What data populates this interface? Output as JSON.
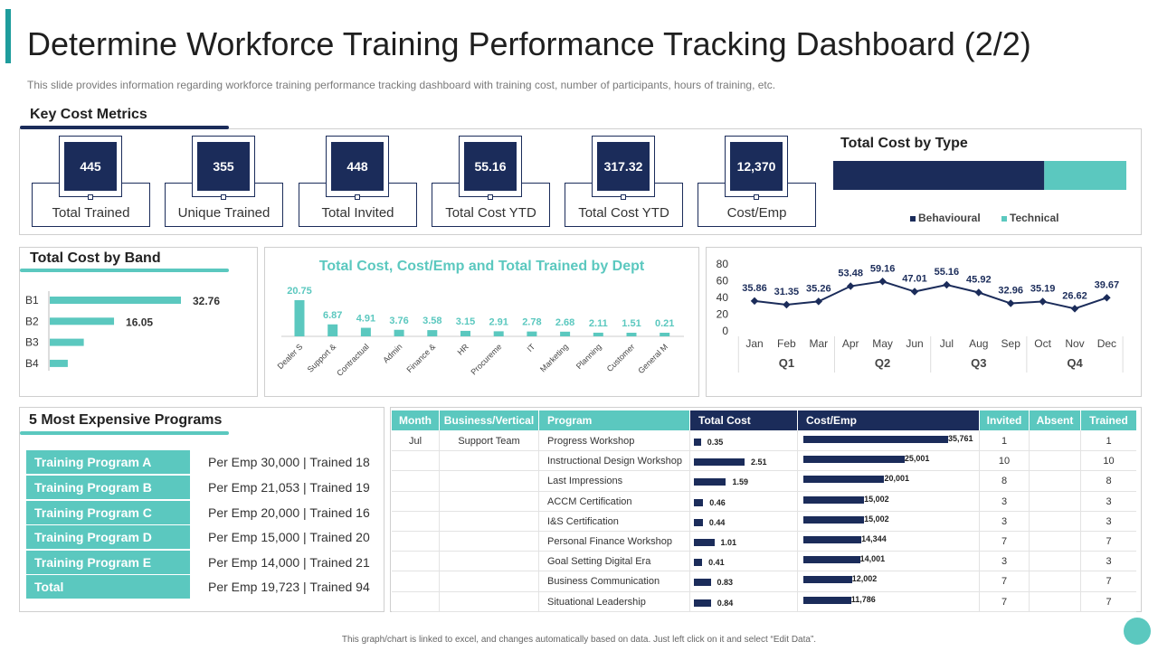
{
  "page": {
    "title": "Determine Workforce Training Performance Tracking Dashboard (2/2)",
    "subtitle": "This slide provides  information  regarding  workforce  training  performance  tracking dashboard  with training cost, number of participants, hours of training, etc.",
    "footer": "This graph/chart is linked to excel, and changes automatically based on data. Just left click on it and select “Edit Data”."
  },
  "colors": {
    "navy": "#1b2c5a",
    "teal": "#5bc8bf",
    "dark_teal": "#1e9c9c"
  },
  "key_cost_metrics": {
    "title": "Key Cost Metrics",
    "kpis": [
      {
        "value": "445",
        "label": "Total Trained"
      },
      {
        "value": "355",
        "label": "Unique Trained"
      },
      {
        "value": "448",
        "label": "Total Invited"
      },
      {
        "value": "55.16",
        "label": "Total Cost YTD"
      },
      {
        "value": "317.32",
        "label": "Total Cost YTD"
      },
      {
        "value": "12,370",
        "label": "Cost/Emp"
      }
    ]
  },
  "chart_data": [
    {
      "type": "bar",
      "orientation": "horizontal-stacked",
      "title": "Total Cost by Type",
      "categories": [
        "Total"
      ],
      "series": [
        {
          "name": "Behavioural",
          "values": [
            72
          ]
        },
        {
          "name": "Technical",
          "values": [
            28
          ]
        }
      ],
      "legend": "bottom"
    },
    {
      "type": "bar",
      "orientation": "horizontal",
      "title": "Total Cost by Band",
      "categories": [
        "B1",
        "B2",
        "B3",
        "B4"
      ],
      "values": [
        32.76,
        16.05,
        8.5,
        4.5
      ],
      "data_labels": [
        "32.76",
        "16.05",
        "",
        ""
      ]
    },
    {
      "type": "bar",
      "title": "Total Cost, Cost/Emp and Total Trained by Dept",
      "categories": [
        "Dealer S",
        "Support &",
        "Contractual",
        "Admin",
        "Finance &",
        "HR",
        "Procureme",
        "IT",
        "Marketing",
        "Planning",
        "Customer",
        "General M"
      ],
      "values": [
        20.75,
        6.87,
        4.91,
        3.76,
        3.58,
        3.15,
        2.91,
        2.78,
        2.68,
        2.11,
        1.51,
        0.21
      ],
      "data_labels": [
        "20.75",
        "6.87",
        "4.91",
        "3.76",
        "3.58",
        "3.15",
        "2.91",
        "2.78",
        "2.68",
        "2.11",
        "1.51",
        "0.21"
      ],
      "ylim": [
        0,
        22
      ]
    },
    {
      "type": "line",
      "title": "",
      "categories": [
        "Jan",
        "Feb",
        "Mar",
        "Apr",
        "May",
        "Jun",
        "Jul",
        "Aug",
        "Sep",
        "Oct",
        "Nov",
        "Dec"
      ],
      "values": [
        35.86,
        31.35,
        35.26,
        53.48,
        59.16,
        47.01,
        55.16,
        45.92,
        32.96,
        35.19,
        26.62,
        39.67
      ],
      "data_labels": [
        "35.86",
        "31.35",
        "35.26",
        "53.48",
        "59.16",
        "47.01",
        "55.16",
        "45.92",
        "32.96",
        "35.19",
        "26.62",
        "39.67"
      ],
      "yticks": [
        "0",
        "20",
        "40",
        "60",
        "80"
      ],
      "ylim": [
        0,
        80
      ],
      "quarters": [
        "Q1",
        "Q2",
        "Q3",
        "Q4"
      ],
      "grid": false
    }
  ],
  "expensive_programs": {
    "title": "5 Most Expensive Programs",
    "rows": [
      {
        "name": "Training Program A",
        "detail": "Per Emp 30,000 | Trained  18"
      },
      {
        "name": "Training Program B",
        "detail": "Per Emp 21,053 | Trained  19"
      },
      {
        "name": "Training Program C",
        "detail": "Per Emp 20,000 | Trained  16"
      },
      {
        "name": "Training Program D",
        "detail": "Per Emp 15,000 | Trained  20"
      },
      {
        "name": "Training Program E",
        "detail": "Per Emp 14,000 | Trained  21"
      },
      {
        "name": "Total",
        "detail": "Per Emp 19,723 | Trained  94"
      }
    ]
  },
  "program_table": {
    "headers": [
      "Month",
      "Business/Vertical",
      "Program",
      "Total Cost",
      "Cost/Emp",
      "Invited",
      "Absent",
      "Trained"
    ],
    "rows": [
      {
        "month": "Jul",
        "vertical": "Support Team",
        "program": "Progress Workshop",
        "total_cost": 0.35,
        "total_cost_label": "0.35",
        "cost_emp": 35761,
        "cost_emp_label": "35,761",
        "invited": "1",
        "absent": "",
        "trained": "1"
      },
      {
        "month": "",
        "vertical": "",
        "program": "Instructional Design Workshop",
        "total_cost": 2.51,
        "total_cost_label": "2.51",
        "cost_emp": 25001,
        "cost_emp_label": "25,001",
        "invited": "10",
        "absent": "",
        "trained": "10"
      },
      {
        "month": "",
        "vertical": "",
        "program": "Last Impressions",
        "total_cost": 1.59,
        "total_cost_label": "1.59",
        "cost_emp": 20001,
        "cost_emp_label": "20,001",
        "invited": "8",
        "absent": "",
        "trained": "8"
      },
      {
        "month": "",
        "vertical": "",
        "program": "ACCM Certification",
        "total_cost": 0.46,
        "total_cost_label": "0.46",
        "cost_emp": 15002,
        "cost_emp_label": "15,002",
        "invited": "3",
        "absent": "",
        "trained": "3"
      },
      {
        "month": "",
        "vertical": "",
        "program": "I&S Certification",
        "total_cost": 0.44,
        "total_cost_label": "0.44",
        "cost_emp": 15002,
        "cost_emp_label": "15,002",
        "invited": "3",
        "absent": "",
        "trained": "3"
      },
      {
        "month": "",
        "vertical": "",
        "program": "Personal Finance Workshop",
        "total_cost": 1.01,
        "total_cost_label": "1.01",
        "cost_emp": 14344,
        "cost_emp_label": "14,344",
        "invited": "7",
        "absent": "",
        "trained": "7"
      },
      {
        "month": "",
        "vertical": "",
        "program": "Goal Setting Digital Era",
        "total_cost": 0.41,
        "total_cost_label": "0.41",
        "cost_emp": 14001,
        "cost_emp_label": "14,001",
        "invited": "3",
        "absent": "",
        "trained": "3"
      },
      {
        "month": "",
        "vertical": "",
        "program": "Business Communication",
        "total_cost": 0.83,
        "total_cost_label": "0.83",
        "cost_emp": 12002,
        "cost_emp_label": "12,002",
        "invited": "7",
        "absent": "",
        "trained": "7"
      },
      {
        "month": "",
        "vertical": "",
        "program": "Situational Leadership",
        "total_cost": 0.84,
        "total_cost_label": "0.84",
        "cost_emp": 11786,
        "cost_emp_label": "11,786",
        "invited": "7",
        "absent": "",
        "trained": "7"
      }
    ]
  }
}
